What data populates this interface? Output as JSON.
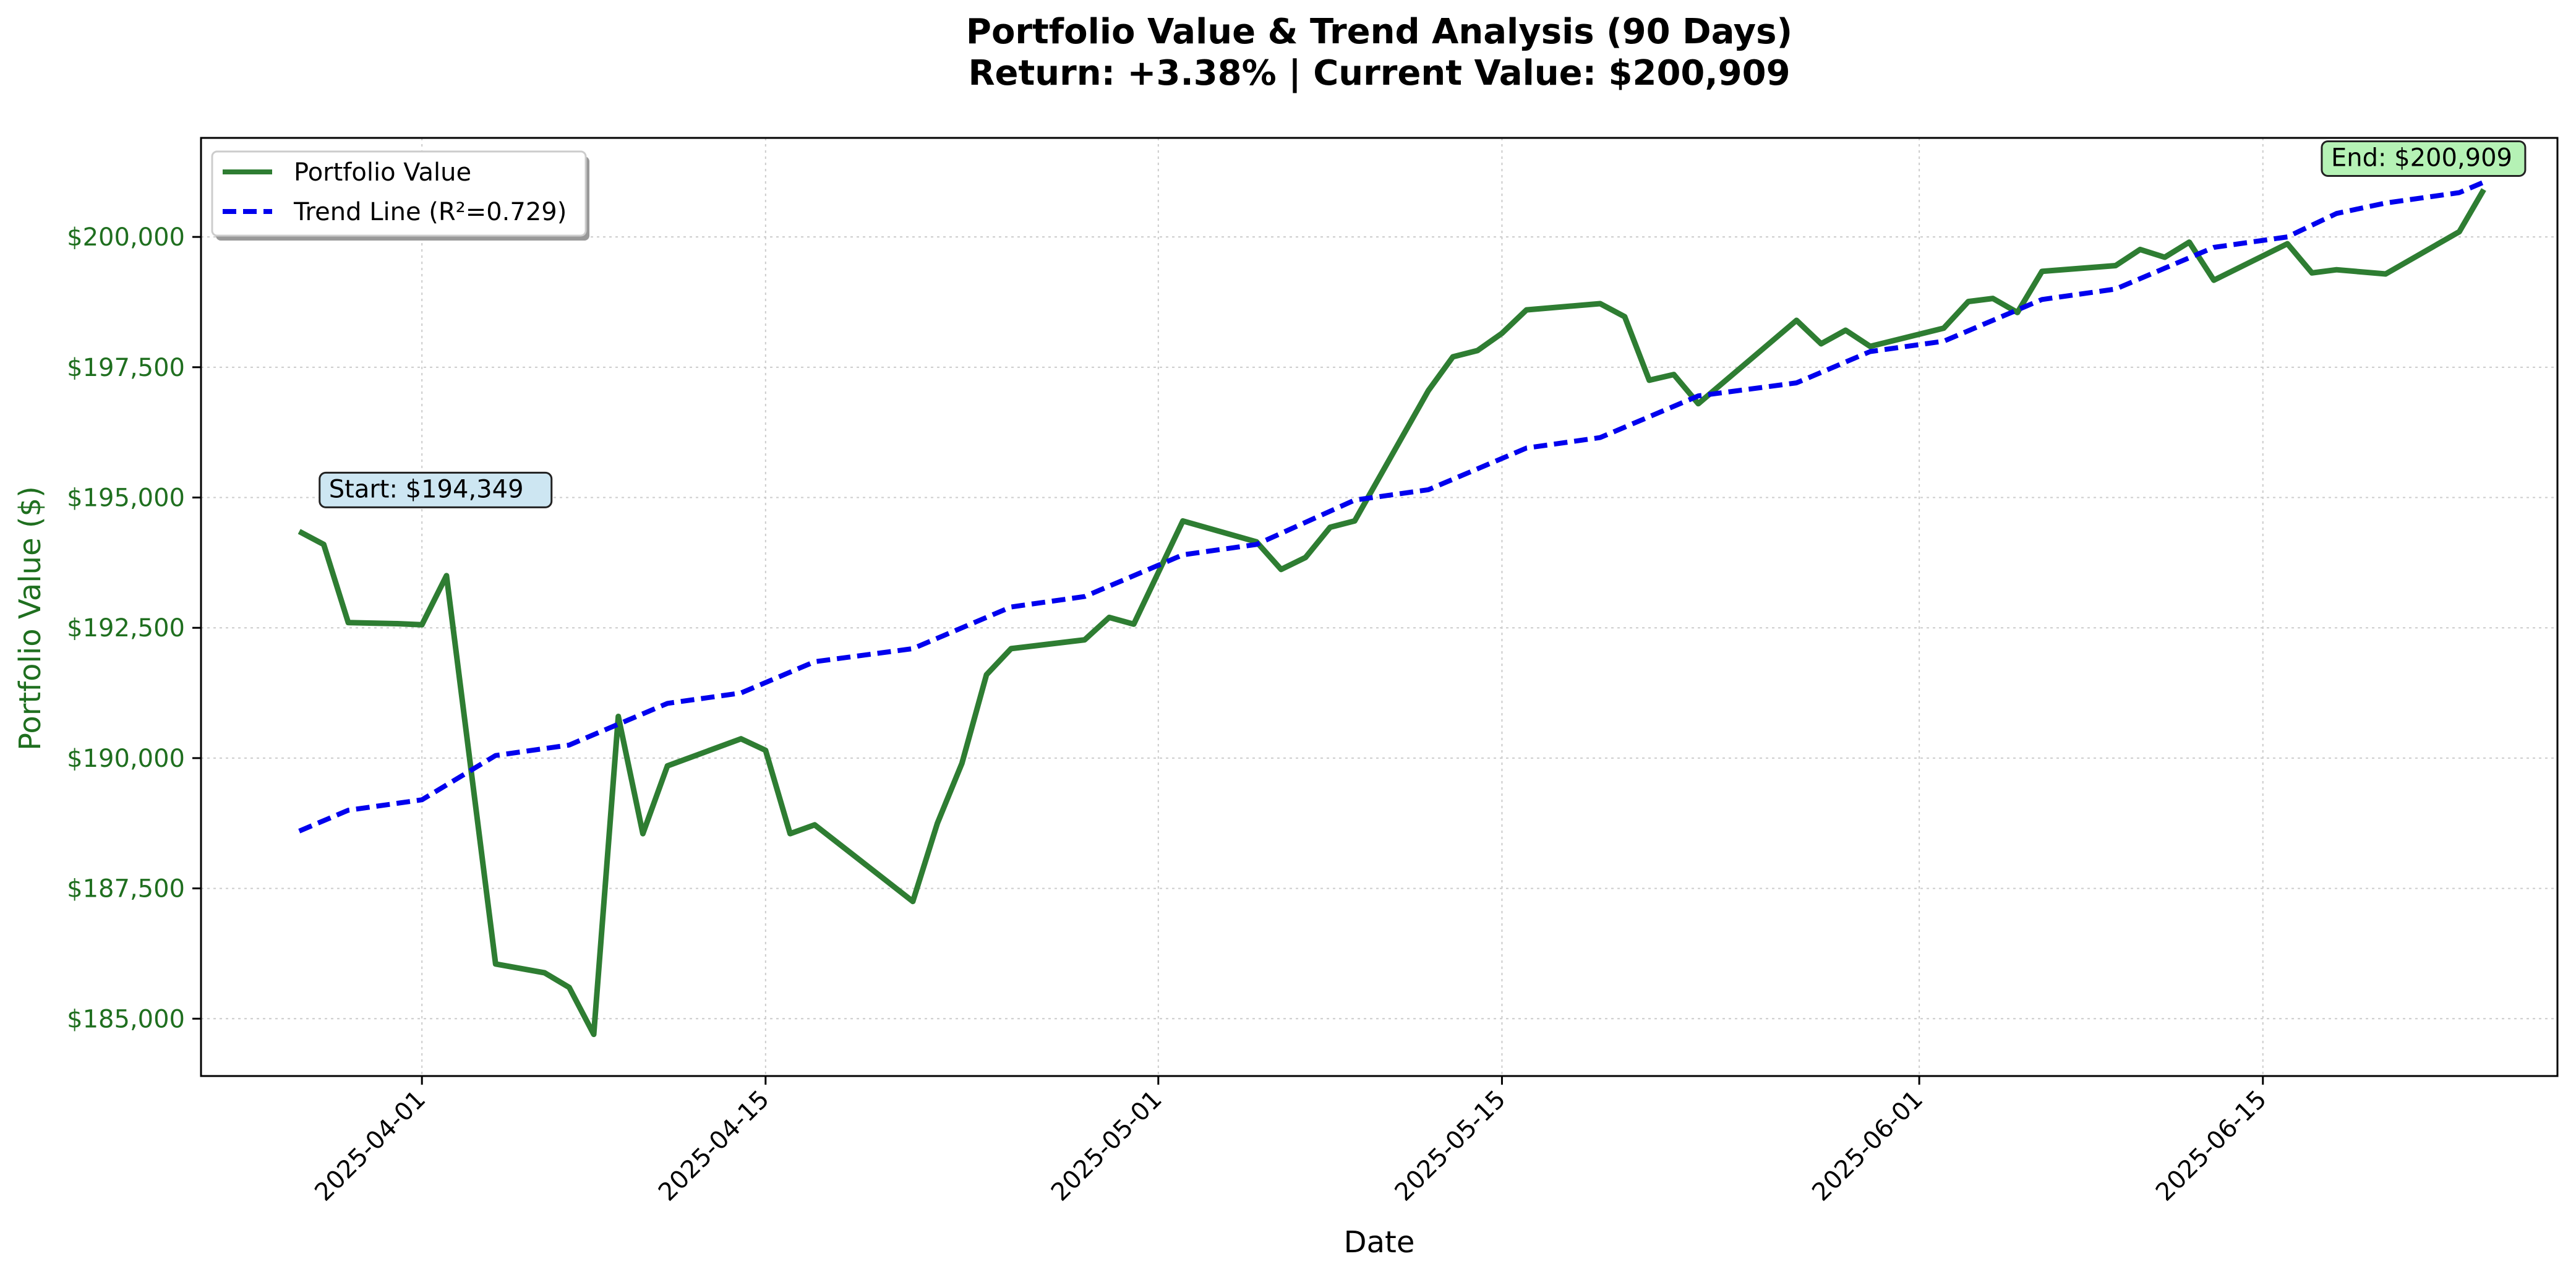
{
  "chart_data": {
    "type": "line",
    "title": "Portfolio Value & Trend Analysis (90 Days)",
    "subtitle": "Return: +3.38% | Current Value: $200,909",
    "xlabel": "Date",
    "ylabel": "Portfolio Value ($)",
    "xlim": [
      "2025-03-23",
      "2025-06-27"
    ],
    "ylim": [
      183900,
      201900
    ],
    "grid": true,
    "legend_position": "top-left",
    "x_tick_labels": [
      "2025-04-01",
      "2025-04-15",
      "2025-05-01",
      "2025-05-15",
      "2025-06-01",
      "2025-06-15"
    ],
    "y_tick_labels": [
      "$185,000",
      "$187,500",
      "$190,000",
      "$192,500",
      "$195,000",
      "$197,500",
      "$200,000"
    ],
    "y_tick_values": [
      185000,
      187500,
      190000,
      192500,
      195000,
      197500,
      200000
    ],
    "series": [
      {
        "name": "Portfolio Value",
        "color": "#2e7d32",
        "style": "solid",
        "points": [
          [
            "2025-03-27",
            194349
          ],
          [
            "2025-03-28",
            194100
          ],
          [
            "2025-03-29",
            192600
          ],
          [
            "2025-03-31",
            192580
          ],
          [
            "2025-04-01",
            192560
          ],
          [
            "2025-04-02",
            193500
          ],
          [
            "2025-04-04",
            186050
          ],
          [
            "2025-04-06",
            185880
          ],
          [
            "2025-04-07",
            185600
          ],
          [
            "2025-04-08",
            184700
          ],
          [
            "2025-04-09",
            190800
          ],
          [
            "2025-04-10",
            188550
          ],
          [
            "2025-04-11",
            189850
          ],
          [
            "2025-04-14",
            190370
          ],
          [
            "2025-04-15",
            190150
          ],
          [
            "2025-04-16",
            188550
          ],
          [
            "2025-04-17",
            188720
          ],
          [
            "2025-04-21",
            187250
          ],
          [
            "2025-04-22",
            188750
          ],
          [
            "2025-04-23",
            189900
          ],
          [
            "2025-04-24",
            191600
          ],
          [
            "2025-04-25",
            192100
          ],
          [
            "2025-04-28",
            192270
          ],
          [
            "2025-04-29",
            192700
          ],
          [
            "2025-04-30",
            192570
          ],
          [
            "2025-05-02",
            194550
          ],
          [
            "2025-05-05",
            194150
          ],
          [
            "2025-05-06",
            193620
          ],
          [
            "2025-05-07",
            193850
          ],
          [
            "2025-05-08",
            194430
          ],
          [
            "2025-05-09",
            194550
          ],
          [
            "2025-05-12",
            197050
          ],
          [
            "2025-05-13",
            197700
          ],
          [
            "2025-05-14",
            197820
          ],
          [
            "2025-05-15",
            198150
          ],
          [
            "2025-05-16",
            198600
          ],
          [
            "2025-05-19",
            198720
          ],
          [
            "2025-05-20",
            198470
          ],
          [
            "2025-05-21",
            197250
          ],
          [
            "2025-05-22",
            197360
          ],
          [
            "2025-05-23",
            196800
          ],
          [
            "2025-05-27",
            198400
          ],
          [
            "2025-05-28",
            197950
          ],
          [
            "2025-05-29",
            198210
          ],
          [
            "2025-05-30",
            197900
          ],
          [
            "2025-06-02",
            198250
          ],
          [
            "2025-06-03",
            198760
          ],
          [
            "2025-06-04",
            198820
          ],
          [
            "2025-06-05",
            198550
          ],
          [
            "2025-06-06",
            199340
          ],
          [
            "2025-06-09",
            199450
          ],
          [
            "2025-06-10",
            199760
          ],
          [
            "2025-06-11",
            199610
          ],
          [
            "2025-06-12",
            199900
          ],
          [
            "2025-06-13",
            199170
          ],
          [
            "2025-06-16",
            199870
          ],
          [
            "2025-06-17",
            199310
          ],
          [
            "2025-06-18",
            199370
          ],
          [
            "2025-06-20",
            199290
          ],
          [
            "2025-06-23",
            200100
          ],
          [
            "2025-06-24",
            200909
          ]
        ]
      },
      {
        "name": "Trend Line (R²=0.729)",
        "color": "#0000ee",
        "style": "dashed",
        "points": [
          [
            "2025-03-27",
            188600
          ],
          [
            "2025-03-29",
            189000
          ],
          [
            "2025-04-01",
            189200
          ],
          [
            "2025-04-04",
            190050
          ],
          [
            "2025-04-07",
            190250
          ],
          [
            "2025-04-11",
            191050
          ],
          [
            "2025-04-14",
            191250
          ],
          [
            "2025-04-17",
            191850
          ],
          [
            "2025-04-21",
            192100
          ],
          [
            "2025-04-25",
            192900
          ],
          [
            "2025-04-28",
            193100
          ],
          [
            "2025-05-02",
            193900
          ],
          [
            "2025-05-05",
            194100
          ],
          [
            "2025-05-09",
            194950
          ],
          [
            "2025-05-12",
            195150
          ],
          [
            "2025-05-16",
            195950
          ],
          [
            "2025-05-19",
            196150
          ],
          [
            "2025-05-23",
            196950
          ],
          [
            "2025-05-27",
            197200
          ],
          [
            "2025-05-30",
            197800
          ],
          [
            "2025-06-02",
            198000
          ],
          [
            "2025-06-06",
            198800
          ],
          [
            "2025-06-09",
            199000
          ],
          [
            "2025-06-13",
            199800
          ],
          [
            "2025-06-16",
            200000
          ],
          [
            "2025-06-18",
            200450
          ],
          [
            "2025-06-20",
            200650
          ],
          [
            "2025-06-23",
            200850
          ],
          [
            "2025-06-24",
            201050
          ]
        ]
      }
    ],
    "annotations": [
      {
        "label": "Start: $194,349",
        "x": "2025-03-27",
        "y": 194349,
        "bg": "#cde6f2"
      },
      {
        "label": "End: $200,909",
        "x": "2025-06-24",
        "y": 200909,
        "bg": "#b5f2b5"
      }
    ]
  }
}
